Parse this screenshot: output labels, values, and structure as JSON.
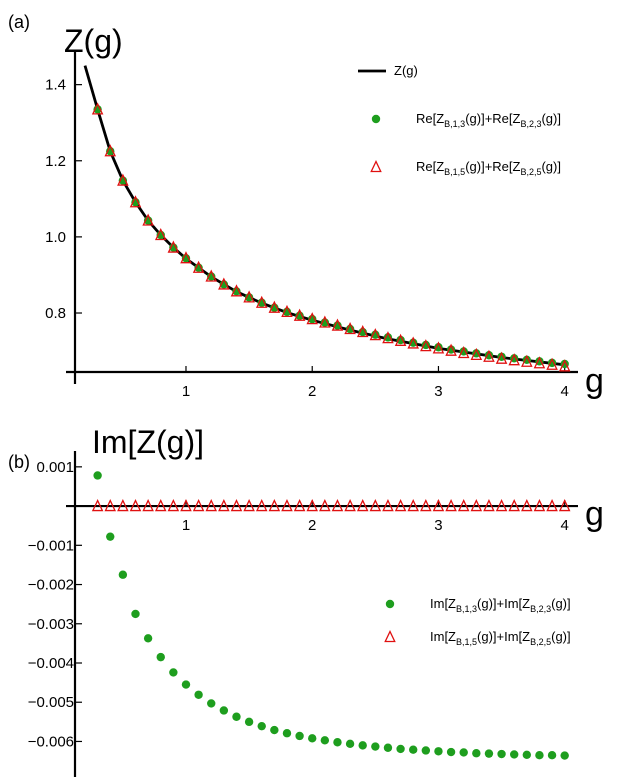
{
  "chart_data": [
    {
      "panel_label": "(a)",
      "type": "line",
      "ylabel": "Z(g)",
      "xlabel": "g",
      "xlim": [
        0.2,
        4.05
      ],
      "ylim": [
        0.645,
        1.47
      ],
      "x_axis_crosses_y_at": 0.645,
      "xticks": [
        1,
        2,
        3,
        4
      ],
      "xtick_labels": [
        "1",
        "2",
        "3",
        "4"
      ],
      "yticks": [
        0.8,
        1.0,
        1.2,
        1.4
      ],
      "ytick_labels": [
        "0.8",
        "1.0",
        "1.2",
        "1.4"
      ],
      "grid": false,
      "legend_position": "top-right",
      "series": [
        {
          "name": "Z(g)",
          "label_subs": [],
          "label_tail": "",
          "kind": "line",
          "color": "#000000",
          "x": [
            0.2,
            0.3,
            0.4,
            0.5,
            0.6,
            0.7,
            0.8,
            0.9,
            1.0,
            1.2,
            1.4,
            1.6,
            1.8,
            2.0,
            2.3,
            2.6,
            3.0,
            3.5,
            4.0
          ],
          "y": [
            1.45,
            1.335,
            1.225,
            1.148,
            1.091,
            1.043,
            1.005,
            0.972,
            0.943,
            0.895,
            0.856,
            0.826,
            0.801,
            0.781,
            0.755,
            0.732,
            0.707,
            0.683,
            0.664
          ]
        },
        {
          "name": "Re[Z",
          "label_subs": [
            "B,1,3",
            "B,2,3"
          ],
          "label_mid": "(g)]+Re[Z",
          "label_tail": "(g)]",
          "kind": "scatter",
          "marker": "circle",
          "color": "#1e9e1e",
          "x": [
            0.3,
            0.4,
            0.5,
            0.6,
            0.7,
            0.8,
            0.9,
            1.0,
            1.1,
            1.2,
            1.3,
            1.4,
            1.5,
            1.6,
            1.7,
            1.8,
            1.9,
            2.0,
            2.1,
            2.2,
            2.3,
            2.4,
            2.5,
            2.6,
            2.7,
            2.8,
            2.9,
            3.0,
            3.1,
            3.2,
            3.3,
            3.4,
            3.5,
            3.6,
            3.7,
            3.8,
            3.9,
            4.0
          ],
          "y": [
            1.335,
            1.225,
            1.148,
            1.091,
            1.043,
            1.005,
            0.972,
            0.944,
            0.919,
            0.896,
            0.875,
            0.857,
            0.841,
            0.827,
            0.814,
            0.803,
            0.793,
            0.784,
            0.775,
            0.767,
            0.758,
            0.75,
            0.743,
            0.736,
            0.729,
            0.722,
            0.716,
            0.71,
            0.704,
            0.699,
            0.694,
            0.689,
            0.685,
            0.681,
            0.677,
            0.673,
            0.669,
            0.666
          ]
        },
        {
          "name": "Re[Z",
          "label_subs": [
            "B,1,5",
            "B,2,5"
          ],
          "label_mid": "(g)]+Re[Z",
          "label_tail": "(g)]",
          "kind": "scatter",
          "marker": "triangle",
          "color": "#e01010",
          "x": [
            0.3,
            0.4,
            0.5,
            0.6,
            0.7,
            0.8,
            0.9,
            1.0,
            1.1,
            1.2,
            1.3,
            1.4,
            1.5,
            1.6,
            1.7,
            1.8,
            1.9,
            2.0,
            2.1,
            2.2,
            2.3,
            2.4,
            2.5,
            2.6,
            2.7,
            2.8,
            2.9,
            3.0,
            3.1,
            3.2,
            3.3,
            3.4,
            3.5,
            3.6,
            3.7,
            3.8,
            3.9,
            4.0
          ],
          "y": [
            1.335,
            1.225,
            1.148,
            1.091,
            1.043,
            1.005,
            0.972,
            0.944,
            0.919,
            0.896,
            0.875,
            0.857,
            0.841,
            0.827,
            0.814,
            0.803,
            0.793,
            0.784,
            0.775,
            0.767,
            0.758,
            0.75,
            0.742,
            0.734,
            0.727,
            0.72,
            0.713,
            0.707,
            0.701,
            0.695,
            0.69,
            0.685,
            0.68,
            0.676,
            0.672,
            0.668,
            0.664,
            0.66
          ]
        }
      ]
    },
    {
      "panel_label": "(b)",
      "type": "scatter",
      "ylabel": "Im[Z(g)]",
      "xlabel": "g",
      "xlim": [
        0.2,
        4.05
      ],
      "ylim": [
        -0.0066,
        0.0012
      ],
      "x_axis_crosses_y_at": 0,
      "xticks": [
        1,
        2,
        3,
        4
      ],
      "xtick_labels": [
        "1",
        "2",
        "3",
        "4"
      ],
      "yticks": [
        0.001,
        -0.001,
        -0.002,
        -0.003,
        -0.004,
        -0.005,
        -0.006
      ],
      "ytick_labels": [
        "0.001",
        "−0.001",
        "−0.002",
        "−0.003",
        "−0.004",
        "−0.005",
        "−0.006"
      ],
      "grid": false,
      "legend_position": "right",
      "series": [
        {
          "name": "Im[Z",
          "label_subs": [
            "B,1,3",
            "B,2,3"
          ],
          "label_mid": "(g)]+Im[Z",
          "label_tail": "(g)]",
          "kind": "scatter",
          "marker": "circle",
          "color": "#1e9e1e",
          "x": [
            0.3,
            0.4,
            0.5,
            0.6,
            0.7,
            0.8,
            0.9,
            1.0,
            1.1,
            1.2,
            1.3,
            1.4,
            1.5,
            1.6,
            1.7,
            1.8,
            1.9,
            2.0,
            2.1,
            2.2,
            2.3,
            2.4,
            2.5,
            2.6,
            2.7,
            2.8,
            2.9,
            3.0,
            3.1,
            3.2,
            3.3,
            3.4,
            3.5,
            3.6,
            3.7,
            3.8,
            3.9,
            4.0
          ],
          "y": [
            0.00078,
            -0.00078,
            -0.00175,
            -0.00275,
            -0.00337,
            -0.00385,
            -0.00424,
            -0.00455,
            -0.00481,
            -0.00503,
            -0.00521,
            -0.00537,
            -0.0055,
            -0.00561,
            -0.00571,
            -0.00579,
            -0.00586,
            -0.00592,
            -0.00597,
            -0.00602,
            -0.00606,
            -0.0061,
            -0.00613,
            -0.00616,
            -0.00619,
            -0.00621,
            -0.00623,
            -0.00625,
            -0.00627,
            -0.00628,
            -0.0063,
            -0.00631,
            -0.00632,
            -0.00633,
            -0.00634,
            -0.00635,
            -0.00635,
            -0.00636
          ]
        },
        {
          "name": "Im[Z",
          "label_subs": [
            "B,1,5",
            "B,2,5"
          ],
          "label_mid": "(g)]+Im[Z",
          "label_tail": "(g)]",
          "kind": "scatter",
          "marker": "triangle",
          "color": "#e01010",
          "x": [
            0.3,
            0.4,
            0.5,
            0.6,
            0.7,
            0.8,
            0.9,
            1.0,
            1.1,
            1.2,
            1.3,
            1.4,
            1.5,
            1.6,
            1.7,
            1.8,
            1.9,
            2.0,
            2.1,
            2.2,
            2.3,
            2.4,
            2.5,
            2.6,
            2.7,
            2.8,
            2.9,
            3.0,
            3.1,
            3.2,
            3.3,
            3.4,
            3.5,
            3.6,
            3.7,
            3.8,
            3.9,
            4.0
          ],
          "y": [
            0,
            0,
            0,
            0,
            0,
            0,
            0,
            0,
            0,
            0,
            0,
            0,
            0,
            0,
            0,
            0,
            0,
            0,
            0,
            0,
            0,
            0,
            0,
            0,
            0,
            0,
            0,
            0,
            0,
            0,
            0,
            0,
            0,
            0,
            0,
            0,
            0,
            0
          ]
        }
      ]
    }
  ]
}
